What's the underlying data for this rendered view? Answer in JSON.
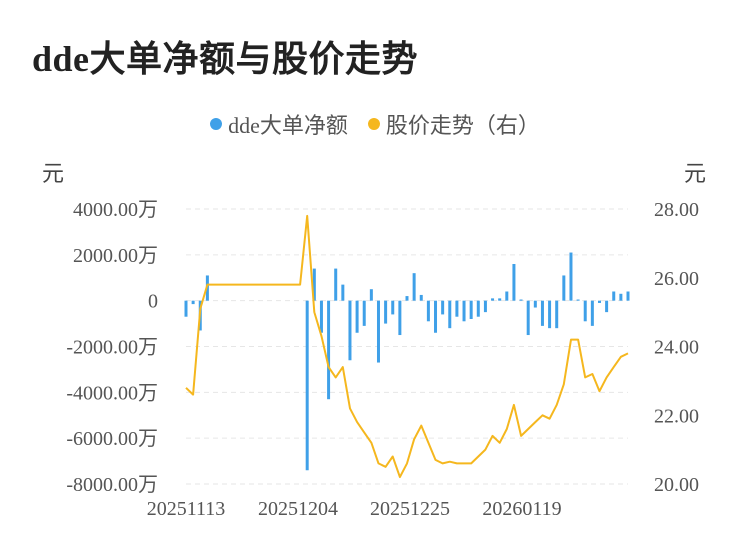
{
  "title": "dde大单净额与股价走势",
  "legend": [
    {
      "label": "dde大单净额",
      "color": "#3fa0e8"
    },
    {
      "label": "股价走势（右）",
      "color": "#f5b71e"
    }
  ],
  "units": {
    "left": "元",
    "right": "元"
  },
  "chart_data": {
    "type": "bar+line",
    "categories_shown": [
      "20251113",
      "20251204",
      "20251225",
      "20260119"
    ],
    "left_axis": {
      "ticks": [
        "4000.00万",
        "2000.00万",
        "0",
        "-2000.00万",
        "-4000.00万",
        "-6000.00万",
        "-8000.00万"
      ],
      "range": [
        -8000,
        4000
      ],
      "unit": "万"
    },
    "right_axis": {
      "ticks": [
        "28.00",
        "26.00",
        "24.00",
        "22.00",
        "20.00"
      ],
      "range": [
        20,
        28
      ]
    },
    "series": [
      {
        "name": "dde大单净额",
        "kind": "bar",
        "color": "#3fa0e8",
        "values": [
          -700,
          -150,
          -1300,
          1100,
          0,
          0,
          0,
          0,
          0,
          0,
          0,
          0,
          0,
          0,
          0,
          0,
          0,
          -7400,
          1400,
          -1400,
          -4300,
          1400,
          700,
          -2600,
          -1400,
          -1100,
          500,
          -2700,
          -1000,
          -600,
          -1500,
          200,
          1200,
          250,
          -900,
          -1400,
          -600,
          -1200,
          -700,
          -900,
          -800,
          -700,
          -500,
          100,
          100,
          400,
          1600,
          50,
          -1500,
          -300,
          -1100,
          -1200,
          -1200,
          1100,
          2100,
          50,
          -900,
          -1100,
          -100,
          -500,
          400,
          300,
          400
        ],
        "x_index": [
          0,
          1,
          2,
          3,
          4,
          5,
          6,
          7,
          8,
          9,
          10,
          11,
          12,
          13,
          14,
          15,
          16,
          17,
          18,
          19,
          20,
          21,
          22,
          23,
          24,
          25,
          26,
          27,
          28,
          29,
          30,
          31,
          32,
          33,
          34,
          35,
          36,
          37,
          38,
          39,
          40,
          41,
          42,
          43,
          44,
          45,
          46,
          47,
          48,
          49,
          50,
          51,
          52,
          53,
          54,
          55,
          56,
          57,
          58,
          59,
          60,
          61,
          62
        ]
      },
      {
        "name": "股价走势（右）",
        "kind": "line",
        "color": "#f5b71e",
        "values": [
          22.8,
          22.6,
          25.1,
          25.8,
          25.8,
          25.8,
          25.8,
          25.8,
          25.8,
          25.8,
          25.8,
          25.8,
          25.8,
          25.8,
          25.8,
          25.8,
          25.8,
          27.8,
          25.0,
          24.3,
          23.4,
          23.1,
          23.4,
          22.2,
          21.8,
          21.5,
          21.2,
          20.6,
          20.5,
          20.8,
          20.2,
          20.6,
          21.3,
          21.7,
          21.2,
          20.7,
          20.6,
          20.65,
          20.6,
          20.6,
          20.6,
          20.8,
          21.0,
          21.4,
          21.2,
          21.6,
          22.3,
          21.4,
          21.6,
          21.8,
          22.0,
          21.9,
          22.3,
          22.9,
          24.2,
          24.2,
          23.1,
          23.2,
          22.7,
          23.1,
          23.4,
          23.7,
          23.8
        ],
        "x_index": [
          0,
          1,
          2,
          3,
          4,
          5,
          6,
          7,
          8,
          9,
          10,
          11,
          12,
          13,
          14,
          15,
          16,
          17,
          18,
          19,
          20,
          21,
          22,
          23,
          24,
          25,
          26,
          27,
          28,
          29,
          30,
          31,
          32,
          33,
          34,
          35,
          36,
          37,
          38,
          39,
          40,
          41,
          42,
          43,
          44,
          45,
          46,
          47,
          48,
          49,
          50,
          51,
          52,
          53,
          54,
          55,
          56,
          57,
          58,
          59,
          60,
          61,
          62
        ]
      }
    ],
    "grid": "horizontal dashed"
  }
}
